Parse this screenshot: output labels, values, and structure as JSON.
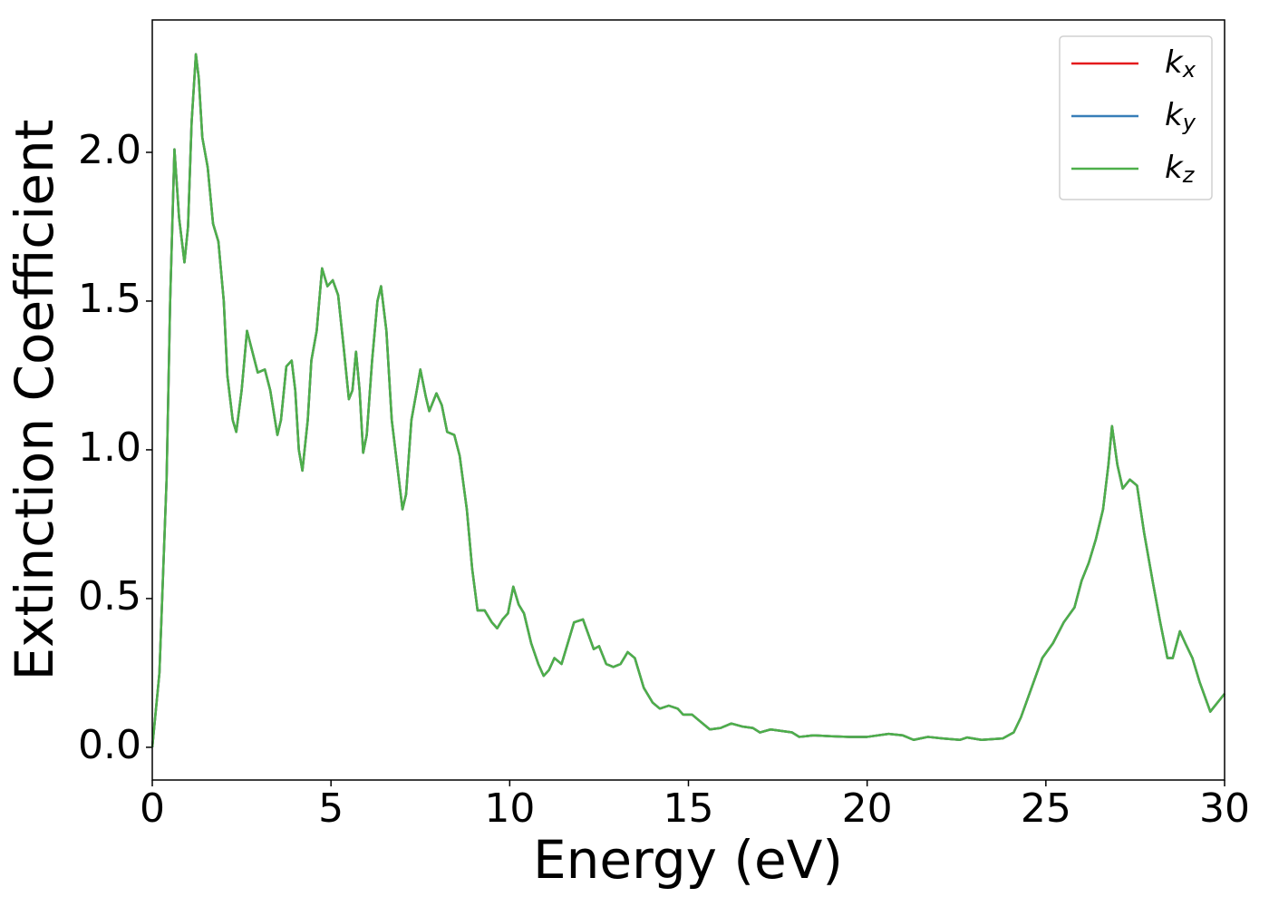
{
  "chart_data": {
    "type": "line",
    "xlabel": "Energy (eV)",
    "ylabel": "Extinction Coefficient",
    "x": [
      0,
      0.2,
      0.4,
      0.5,
      0.62,
      0.75,
      0.9,
      1.0,
      1.1,
      1.22,
      1.3,
      1.4,
      1.55,
      1.7,
      1.85,
      2.0,
      2.1,
      2.25,
      2.35,
      2.5,
      2.65,
      2.8,
      2.95,
      3.15,
      3.3,
      3.5,
      3.6,
      3.75,
      3.9,
      4.0,
      4.1,
      4.2,
      4.35,
      4.45,
      4.6,
      4.75,
      4.9,
      5.05,
      5.2,
      5.35,
      5.5,
      5.6,
      5.7,
      5.8,
      5.9,
      6.0,
      6.15,
      6.3,
      6.4,
      6.55,
      6.7,
      6.85,
      7.0,
      7.1,
      7.25,
      7.4,
      7.5,
      7.65,
      7.75,
      7.95,
      8.1,
      8.25,
      8.45,
      8.6,
      8.8,
      8.95,
      9.1,
      9.3,
      9.5,
      9.65,
      9.8,
      9.95,
      10.1,
      10.25,
      10.4,
      10.6,
      10.8,
      10.95,
      11.1,
      11.25,
      11.45,
      11.65,
      11.8,
      12.05,
      12.2,
      12.35,
      12.5,
      12.7,
      12.9,
      13.1,
      13.3,
      13.5,
      13.75,
      14.0,
      14.2,
      14.45,
      14.7,
      14.85,
      15.1,
      15.3,
      15.6,
      15.9,
      16.2,
      16.5,
      16.8,
      17.0,
      17.3,
      17.6,
      17.9,
      18.1,
      18.5,
      19.0,
      19.5,
      20.0,
      20.6,
      21.0,
      21.3,
      21.7,
      22.1,
      22.6,
      22.8,
      23.2,
      23.8,
      24.1,
      24.3,
      24.6,
      24.9,
      25.2,
      25.5,
      25.8,
      26.0,
      26.2,
      26.4,
      26.6,
      26.75,
      26.85,
      27.0,
      27.15,
      27.35,
      27.55,
      27.75,
      28.0,
      28.2,
      28.4,
      28.55,
      28.75,
      28.9,
      29.1,
      29.3,
      29.6,
      29.8,
      30.0
    ],
    "series": [
      {
        "name": "kx",
        "color": "#e41a1c",
        "values": [
          0,
          0.25,
          0.9,
          1.5,
          2.01,
          1.78,
          1.63,
          1.75,
          2.1,
          2.33,
          2.25,
          2.05,
          1.95,
          1.76,
          1.7,
          1.5,
          1.25,
          1.1,
          1.06,
          1.2,
          1.4,
          1.33,
          1.26,
          1.27,
          1.2,
          1.05,
          1.1,
          1.28,
          1.3,
          1.2,
          1.0,
          0.93,
          1.1,
          1.3,
          1.4,
          1.61,
          1.55,
          1.57,
          1.52,
          1.35,
          1.17,
          1.2,
          1.33,
          1.2,
          0.99,
          1.05,
          1.3,
          1.5,
          1.55,
          1.4,
          1.1,
          0.95,
          0.8,
          0.85,
          1.1,
          1.2,
          1.27,
          1.18,
          1.13,
          1.19,
          1.15,
          1.06,
          1.05,
          0.98,
          0.8,
          0.6,
          0.46,
          0.46,
          0.42,
          0.4,
          0.43,
          0.45,
          0.54,
          0.48,
          0.45,
          0.35,
          0.28,
          0.24,
          0.26,
          0.3,
          0.28,
          0.36,
          0.42,
          0.43,
          0.38,
          0.33,
          0.34,
          0.28,
          0.27,
          0.28,
          0.32,
          0.3,
          0.2,
          0.15,
          0.13,
          0.14,
          0.13,
          0.11,
          0.11,
          0.09,
          0.06,
          0.065,
          0.08,
          0.07,
          0.065,
          0.05,
          0.06,
          0.055,
          0.05,
          0.035,
          0.04,
          0.037,
          0.035,
          0.035,
          0.045,
          0.04,
          0.025,
          0.035,
          0.03,
          0.025,
          0.033,
          0.025,
          0.03,
          0.05,
          0.1,
          0.2,
          0.3,
          0.35,
          0.42,
          0.47,
          0.56,
          0.62,
          0.7,
          0.8,
          0.95,
          1.08,
          0.95,
          0.87,
          0.9,
          0.88,
          0.72,
          0.55,
          0.42,
          0.3,
          0.3,
          0.39,
          0.35,
          0.3,
          0.22,
          0.12,
          0.15,
          0.18
        ]
      },
      {
        "name": "ky",
        "color": "#377eb8",
        "values": [
          0,
          0.25,
          0.9,
          1.5,
          2.01,
          1.78,
          1.63,
          1.75,
          2.1,
          2.33,
          2.25,
          2.05,
          1.95,
          1.76,
          1.7,
          1.5,
          1.25,
          1.1,
          1.06,
          1.2,
          1.4,
          1.33,
          1.26,
          1.27,
          1.2,
          1.05,
          1.1,
          1.28,
          1.3,
          1.2,
          1.0,
          0.93,
          1.1,
          1.3,
          1.4,
          1.61,
          1.55,
          1.57,
          1.52,
          1.35,
          1.17,
          1.2,
          1.33,
          1.2,
          0.99,
          1.05,
          1.3,
          1.5,
          1.55,
          1.4,
          1.1,
          0.95,
          0.8,
          0.85,
          1.1,
          1.2,
          1.27,
          1.18,
          1.13,
          1.19,
          1.15,
          1.06,
          1.05,
          0.98,
          0.8,
          0.6,
          0.46,
          0.46,
          0.42,
          0.4,
          0.43,
          0.45,
          0.54,
          0.48,
          0.45,
          0.35,
          0.28,
          0.24,
          0.26,
          0.3,
          0.28,
          0.36,
          0.42,
          0.43,
          0.38,
          0.33,
          0.34,
          0.28,
          0.27,
          0.28,
          0.32,
          0.3,
          0.2,
          0.15,
          0.13,
          0.14,
          0.13,
          0.11,
          0.11,
          0.09,
          0.06,
          0.065,
          0.08,
          0.07,
          0.065,
          0.05,
          0.06,
          0.055,
          0.05,
          0.035,
          0.04,
          0.037,
          0.035,
          0.035,
          0.045,
          0.04,
          0.025,
          0.035,
          0.03,
          0.025,
          0.033,
          0.025,
          0.03,
          0.05,
          0.1,
          0.2,
          0.3,
          0.35,
          0.42,
          0.47,
          0.56,
          0.62,
          0.7,
          0.8,
          0.95,
          1.08,
          0.95,
          0.87,
          0.9,
          0.88,
          0.72,
          0.55,
          0.42,
          0.3,
          0.3,
          0.39,
          0.35,
          0.3,
          0.22,
          0.12,
          0.15,
          0.18
        ]
      },
      {
        "name": "kz",
        "color": "#4daf4a",
        "values": [
          0,
          0.25,
          0.9,
          1.5,
          2.01,
          1.78,
          1.63,
          1.75,
          2.1,
          2.33,
          2.25,
          2.05,
          1.95,
          1.76,
          1.7,
          1.5,
          1.25,
          1.1,
          1.06,
          1.2,
          1.4,
          1.33,
          1.26,
          1.27,
          1.2,
          1.05,
          1.1,
          1.28,
          1.3,
          1.2,
          1.0,
          0.93,
          1.1,
          1.3,
          1.4,
          1.61,
          1.55,
          1.57,
          1.52,
          1.35,
          1.17,
          1.2,
          1.33,
          1.2,
          0.99,
          1.05,
          1.3,
          1.5,
          1.55,
          1.4,
          1.1,
          0.95,
          0.8,
          0.85,
          1.1,
          1.2,
          1.27,
          1.18,
          1.13,
          1.19,
          1.15,
          1.06,
          1.05,
          0.98,
          0.8,
          0.6,
          0.46,
          0.46,
          0.42,
          0.4,
          0.43,
          0.45,
          0.54,
          0.48,
          0.45,
          0.35,
          0.28,
          0.24,
          0.26,
          0.3,
          0.28,
          0.36,
          0.42,
          0.43,
          0.38,
          0.33,
          0.34,
          0.28,
          0.27,
          0.28,
          0.32,
          0.3,
          0.2,
          0.15,
          0.13,
          0.14,
          0.13,
          0.11,
          0.11,
          0.09,
          0.06,
          0.065,
          0.08,
          0.07,
          0.065,
          0.05,
          0.06,
          0.055,
          0.05,
          0.035,
          0.04,
          0.037,
          0.035,
          0.035,
          0.045,
          0.04,
          0.025,
          0.035,
          0.03,
          0.025,
          0.033,
          0.025,
          0.03,
          0.05,
          0.1,
          0.2,
          0.3,
          0.35,
          0.42,
          0.47,
          0.56,
          0.62,
          0.7,
          0.8,
          0.95,
          1.08,
          0.95,
          0.87,
          0.9,
          0.88,
          0.72,
          0.55,
          0.42,
          0.3,
          0.3,
          0.39,
          0.35,
          0.3,
          0.22,
          0.12,
          0.15,
          0.18
        ]
      }
    ],
    "xlim": [
      0,
      30
    ],
    "xticks": [
      0,
      5,
      10,
      15,
      20,
      25,
      30
    ],
    "ylim": [
      -0.11,
      2.445
    ],
    "yticks": [
      {
        "value": 0,
        "label": "0.0"
      },
      0.5,
      {
        "value": 1,
        "label": "1.0"
      },
      1.5,
      {
        "value": 2,
        "label": "2.0"
      }
    ],
    "grid": false,
    "legend": "upper right"
  }
}
